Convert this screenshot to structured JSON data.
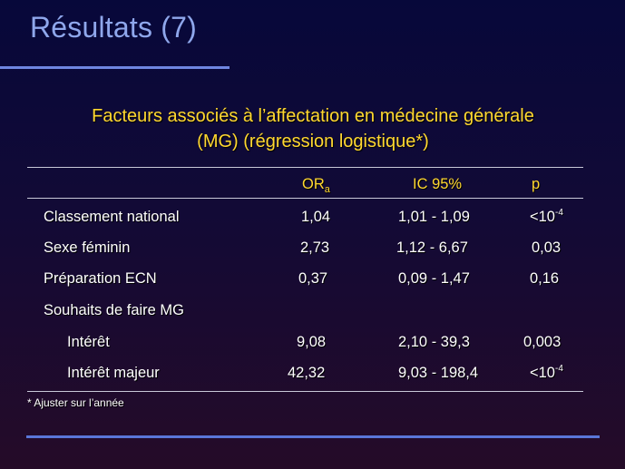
{
  "slide": {
    "title": "Résultats (7)",
    "subtitle_line1": "Facteurs associés à l’affectation en médecine générale",
    "subtitle_line2": "(MG) (régression logistique*)",
    "footnote": "* Ajuster sur l’année"
  },
  "table": {
    "headers": {
      "or_main": "OR",
      "or_sub": "a",
      "ic": "IC 95%",
      "p": "p"
    },
    "rows": [
      {
        "label": "Classement national",
        "or": "1,04",
        "ic": "1,01 - 1,09",
        "p_base": "<10",
        "p_exp": "-4"
      },
      {
        "label": "Sexe féminin",
        "or": "2,73",
        "ic": "1,12 - 6,67",
        "p": "0,03"
      },
      {
        "label": "Préparation ECN",
        "or": "0,37",
        "ic": "0,09 - 1,47",
        "p": "0,16"
      },
      {
        "label": "Souhaits de faire MG"
      },
      {
        "label": "Intérêt",
        "or": "9,08",
        "ic": "2,10 - 39,3",
        "p": "0,003"
      },
      {
        "label": "Intérêt majeur",
        "or": "42,32",
        "ic": "9,03 - 198,4",
        "p_base": "<10",
        "p_exp": "-4"
      }
    ]
  },
  "colors": {
    "title": "#8fa7ec",
    "subtitle": "#ffd830",
    "header": "#ffd830",
    "text": "#ffffff",
    "accent_line": "#5a76d8"
  }
}
